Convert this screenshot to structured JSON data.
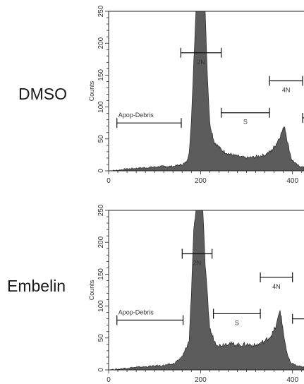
{
  "panels": [
    {
      "condition": "DMSO"
    },
    {
      "condition": "Embelin"
    }
  ],
  "chart_data": [
    {
      "type": "area",
      "condition": "DMSO",
      "ylabel": "Counts",
      "xlim": [
        0,
        425
      ],
      "ylim": [
        0,
        250
      ],
      "x_ticks": [
        0,
        200,
        400
      ],
      "y_ticks": [
        0,
        50,
        100,
        150,
        200,
        250
      ],
      "histogram": {
        "x": [
          0,
          20,
          40,
          60,
          80,
          100,
          120,
          140,
          160,
          170,
          175,
          180,
          185,
          190,
          195,
          200,
          205,
          210,
          215,
          220,
          230,
          245,
          260,
          280,
          300,
          320,
          340,
          355,
          365,
          375,
          383,
          390,
          398,
          410,
          425
        ],
        "y": [
          0,
          1,
          3,
          4,
          5,
          6,
          7,
          7,
          10,
          14,
          30,
          75,
          170,
          250,
          250,
          250,
          250,
          250,
          150,
          75,
          45,
          33,
          27,
          23,
          20,
          22,
          25,
          32,
          43,
          58,
          70,
          42,
          18,
          9,
          5
        ]
      },
      "gates": [
        {
          "label": "Apop-Debris",
          "range": [
            18,
            158
          ],
          "level": 75
        },
        {
          "label": "2N",
          "range": [
            157,
            245
          ],
          "level": 185
        },
        {
          "label": "S",
          "range": [
            245,
            350
          ],
          "level": 91
        },
        {
          "label": "4N",
          "range": [
            350,
            422
          ],
          "level": 141
        },
        {
          "label": "",
          "range": [
            422,
            430
          ],
          "level": 83
        }
      ]
    },
    {
      "type": "area",
      "condition": "Embelin",
      "ylabel": "Counts",
      "xlim": [
        0,
        425
      ],
      "ylim": [
        0,
        250
      ],
      "x_ticks": [
        0,
        200,
        400
      ],
      "y_ticks": [
        0,
        50,
        100,
        150,
        200,
        250
      ],
      "histogram": {
        "x": [
          0,
          20,
          40,
          60,
          80,
          100,
          120,
          140,
          160,
          175,
          180,
          185,
          190,
          195,
          200,
          205,
          210,
          220,
          230,
          240,
          260,
          280,
          300,
          320,
          340,
          355,
          365,
          373,
          380,
          388,
          395,
          410,
          425
        ],
        "y": [
          0,
          1,
          3,
          4,
          5,
          6,
          7,
          9,
          20,
          45,
          120,
          220,
          250,
          250,
          250,
          250,
          165,
          65,
          45,
          38,
          42,
          39,
          40,
          38,
          45,
          55,
          70,
          95,
          60,
          25,
          12,
          6,
          4
        ]
      },
      "gates": [
        {
          "label": "Apop-Debris",
          "range": [
            18,
            162
          ],
          "level": 78
        },
        {
          "label": "2N",
          "range": [
            160,
            225
          ],
          "level": 182
        },
        {
          "label": "S",
          "range": [
            228,
            330
          ],
          "level": 88
        },
        {
          "label": "4N",
          "range": [
            330,
            400
          ],
          "level": 145
        },
        {
          "label": "",
          "range": [
            400,
            430
          ],
          "level": 80
        }
      ]
    }
  ]
}
